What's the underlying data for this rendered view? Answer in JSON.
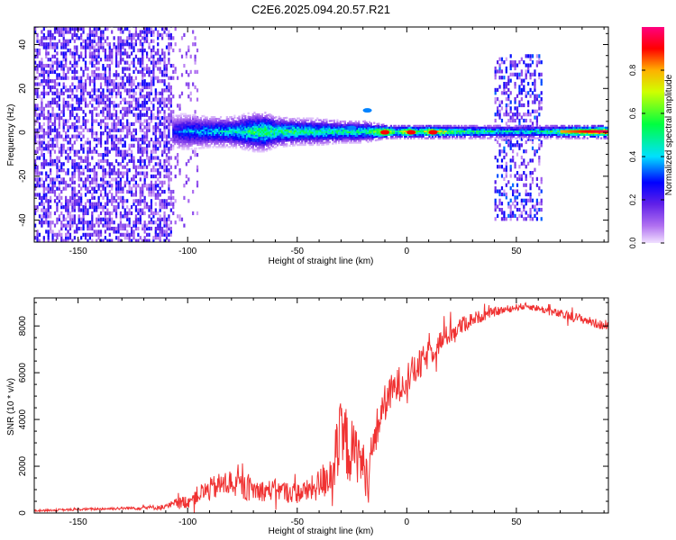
{
  "figure": {
    "title": "C2E6.2025.094.20.57.R21"
  },
  "chart_data": [
    {
      "type": "heatmap",
      "xlabel": "Height of straight line (km)",
      "ylabel": "Frequency (Hz)",
      "xlim": [
        -170,
        92
      ],
      "ylim": [
        -50,
        48
      ],
      "xticks": [
        -150,
        -100,
        -50,
        0,
        50
      ],
      "yticks": [
        -40,
        -20,
        0,
        20,
        40
      ],
      "colorbar": {
        "label": "Normalized spectral amplitude",
        "range": [
          0,
          1
        ],
        "ticks": [
          0.0,
          0.2,
          0.4,
          0.6,
          0.8
        ],
        "colormap": "rainbow (violet-blue-cyan-green-yellow-red-magenta)"
      },
      "band_profile": {
        "x": [
          -107,
          -100,
          -90,
          -80,
          -70,
          -65,
          -60,
          -50,
          -40,
          -30,
          -20,
          -15,
          -10,
          -5,
          0,
          5,
          10,
          20,
          30,
          40,
          50,
          60,
          70,
          80,
          90
        ],
        "peak_amplitude": [
          0.28,
          0.38,
          0.42,
          0.45,
          0.55,
          0.6,
          0.55,
          0.55,
          0.5,
          0.52,
          0.5,
          0.6,
          0.92,
          0.5,
          0.9,
          0.55,
          0.85,
          0.6,
          0.55,
          0.5,
          0.45,
          0.5,
          0.6,
          0.8,
          0.95
        ],
        "band_halfwidth_hz": [
          8,
          8,
          7,
          7,
          9,
          9,
          7,
          6,
          6,
          5,
          5,
          4,
          3,
          3,
          3,
          3,
          3,
          3,
          3,
          3,
          3,
          3,
          3,
          3,
          3
        ]
      },
      "noise_regions": [
        {
          "x": [
            -170,
            -107
          ],
          "y": [
            -50,
            48
          ],
          "amplitude": "low (0.1-0.25)"
        },
        {
          "x": [
            -107,
            -95
          ],
          "y": [
            -50,
            48
          ],
          "amplitude": "very low (<0.1)"
        },
        {
          "x": [
            40,
            62
          ],
          "y": [
            -40,
            35
          ],
          "amplitude": "low (0.1-0.3)"
        }
      ]
    },
    {
      "type": "line",
      "xlabel": "Height of straight line (km)",
      "ylabel": "SNR (10 * v/v)",
      "xlim": [
        -170,
        92
      ],
      "ylim": [
        0,
        9200
      ],
      "xticks": [
        -150,
        -100,
        -50,
        0,
        50
      ],
      "yticks": [
        0,
        2000,
        4000,
        6000,
        8000
      ],
      "series": [
        {
          "color": "#f03232",
          "x": [
            -170,
            -150,
            -130,
            -110,
            -105,
            -100,
            -95,
            -90,
            -85,
            -80,
            -75,
            -70,
            -65,
            -60,
            -55,
            -50,
            -45,
            -40,
            -35,
            -32,
            -30,
            -28,
            -25,
            -22,
            -20,
            -18,
            -15,
            -12,
            -10,
            -8,
            -5,
            0,
            5,
            10,
            15,
            20,
            25,
            30,
            40,
            50,
            55,
            60,
            70,
            80,
            90
          ],
          "y": [
            100,
            150,
            200,
            250,
            400,
            500,
            800,
            1000,
            1200,
            1300,
            1100,
            1000,
            950,
            1000,
            900,
            850,
            950,
            1200,
            1700,
            2500,
            3100,
            3000,
            2600,
            2500,
            2000,
            1500,
            3000,
            4200,
            4700,
            5000,
            5400,
            5800,
            6200,
            6800,
            7300,
            7700,
            8000,
            8300,
            8600,
            8800,
            8850,
            8750,
            8500,
            8300,
            8000
          ],
          "noise_amp": [
            40,
            50,
            60,
            120,
            250,
            300,
            400,
            500,
            550,
            600,
            550,
            500,
            450,
            450,
            450,
            450,
            500,
            700,
            1000,
            1400,
            1800,
            1700,
            1400,
            1200,
            1100,
            900,
            1000,
            900,
            800,
            800,
            800,
            700,
            700,
            600,
            500,
            450,
            400,
            300,
            200,
            150,
            150,
            150,
            200,
            200,
            200
          ]
        }
      ]
    }
  ]
}
